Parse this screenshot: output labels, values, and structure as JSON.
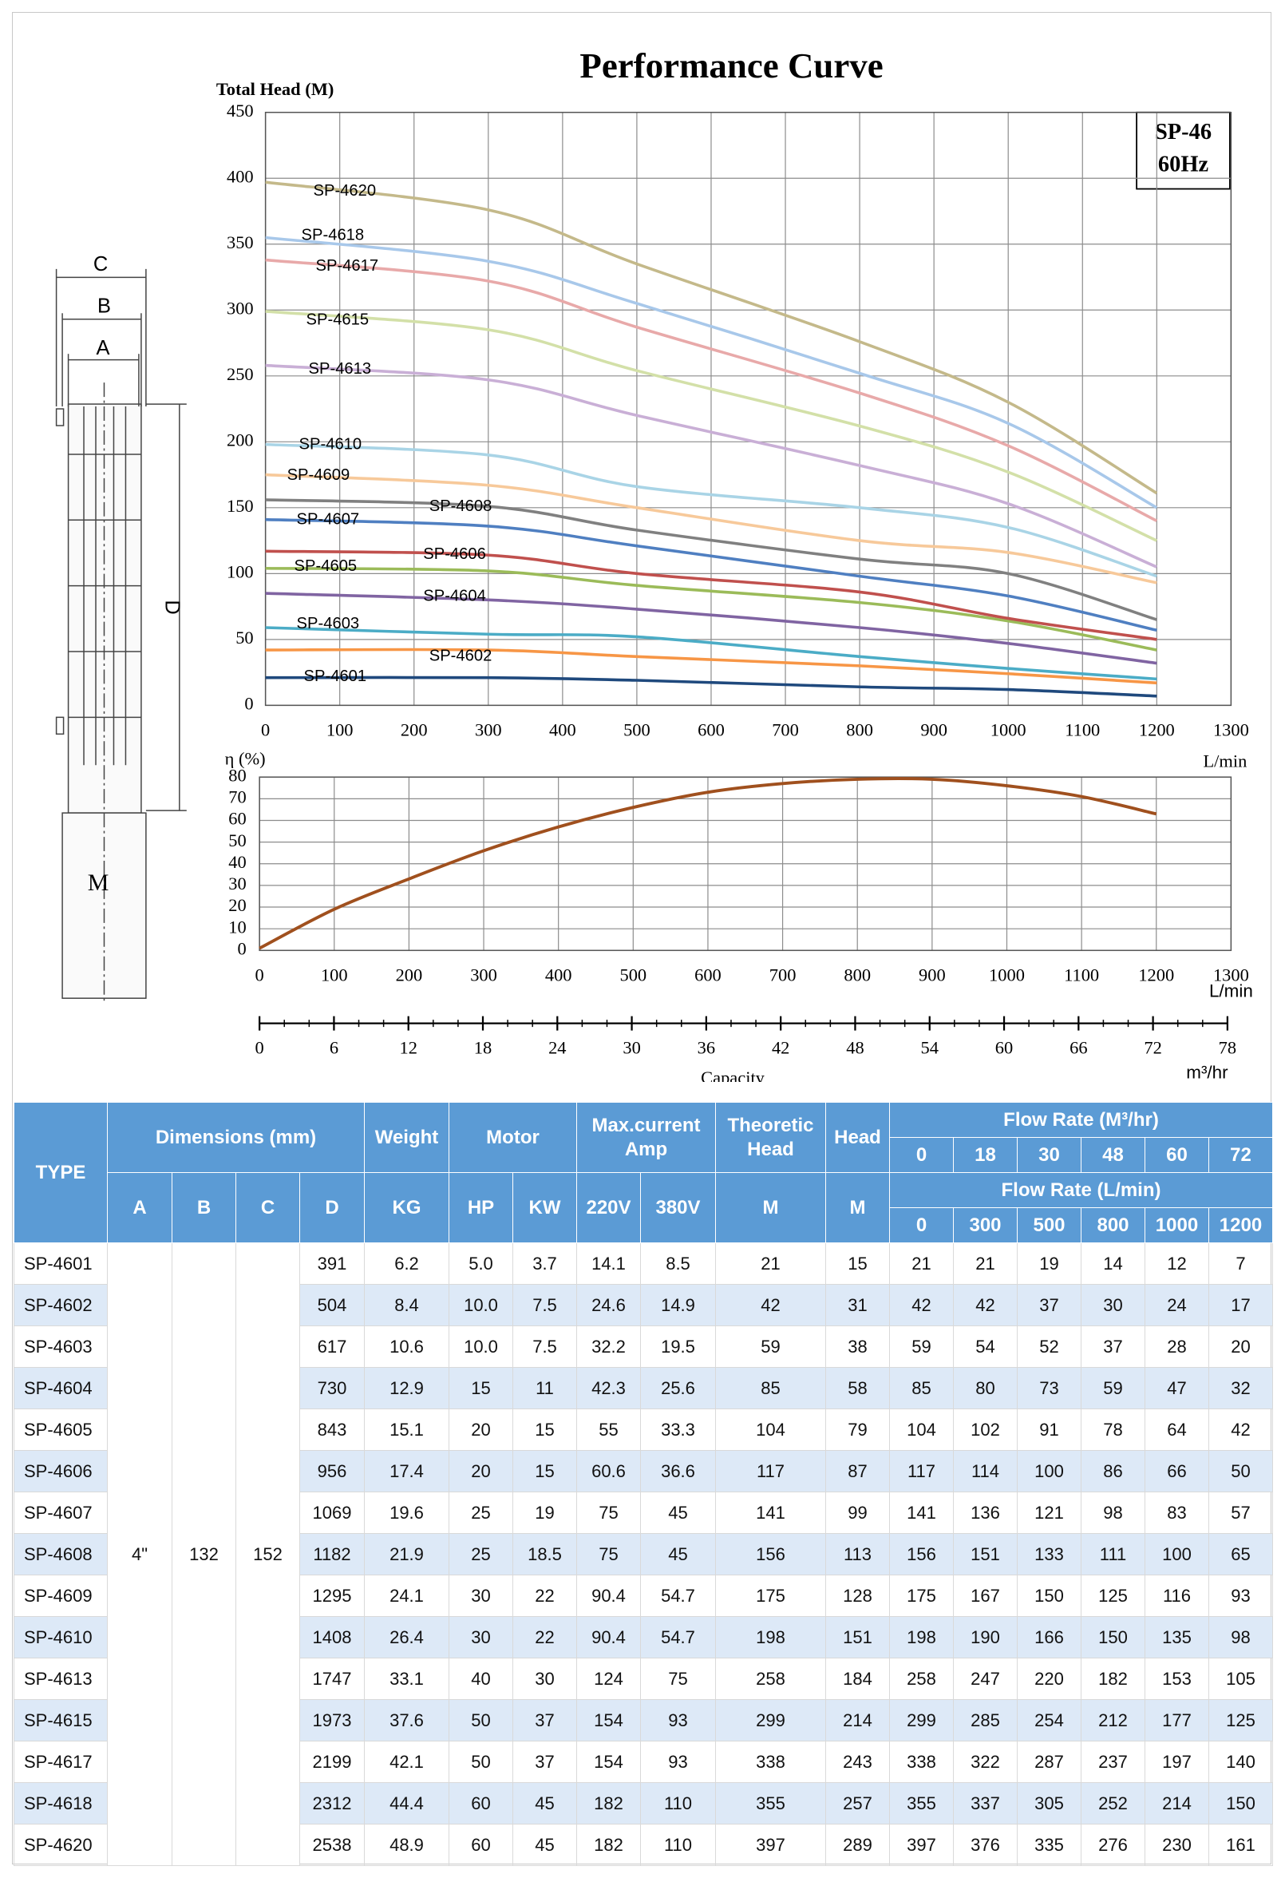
{
  "chart_data": [
    {
      "type": "line",
      "title": "Performance Curve",
      "y_label": "Total Head (M)",
      "x_label": "L/min",
      "model": "SP-46",
      "frequency": "60Hz",
      "x": [
        0,
        300,
        500,
        800,
        1000,
        1200
      ],
      "xlim": [
        0,
        1300
      ],
      "xticks": [
        0,
        100,
        200,
        300,
        400,
        500,
        600,
        700,
        800,
        900,
        1000,
        1100,
        1200,
        1300
      ],
      "ylim": [
        0,
        450
      ],
      "yticks": [
        0,
        50,
        100,
        150,
        200,
        250,
        300,
        350,
        400,
        450
      ],
      "grid": true,
      "series": [
        {
          "name": "SP-4601",
          "color": "#1f497d",
          "values": [
            21,
            21,
            19,
            14,
            12,
            7
          ]
        },
        {
          "name": "SP-4602",
          "color": "#f79646",
          "values": [
            42,
            42,
            37,
            30,
            24,
            17
          ]
        },
        {
          "name": "SP-4603",
          "color": "#4bacc6",
          "values": [
            59,
            54,
            52,
            37,
            28,
            20
          ]
        },
        {
          "name": "SP-4604",
          "color": "#8064a2",
          "values": [
            85,
            80,
            73,
            59,
            47,
            32
          ]
        },
        {
          "name": "SP-4605",
          "color": "#9bbb59",
          "values": [
            104,
            102,
            91,
            78,
            64,
            42
          ]
        },
        {
          "name": "SP-4606",
          "color": "#c0504d",
          "values": [
            117,
            114,
            100,
            86,
            66,
            50
          ]
        },
        {
          "name": "SP-4607",
          "color": "#4f7fc1",
          "values": [
            141,
            136,
            121,
            98,
            83,
            57
          ]
        },
        {
          "name": "SP-4608",
          "color": "#808080",
          "values": [
            156,
            151,
            133,
            111,
            100,
            65
          ]
        },
        {
          "name": "SP-4609",
          "color": "#f7c99a",
          "values": [
            175,
            167,
            150,
            125,
            116,
            93
          ]
        },
        {
          "name": "SP-4610",
          "color": "#a9d4e6",
          "values": [
            198,
            190,
            166,
            150,
            135,
            98
          ]
        },
        {
          "name": "SP-4613",
          "color": "#c9afd6",
          "values": [
            258,
            247,
            220,
            182,
            153,
            105
          ]
        },
        {
          "name": "SP-4615",
          "color": "#d3e0a8",
          "values": [
            299,
            285,
            254,
            212,
            177,
            125
          ]
        },
        {
          "name": "SP-4617",
          "color": "#e8a9a9",
          "values": [
            338,
            322,
            287,
            237,
            197,
            140
          ]
        },
        {
          "name": "SP-4618",
          "color": "#a8c8ea",
          "values": [
            355,
            337,
            305,
            252,
            214,
            150
          ]
        },
        {
          "name": "SP-4620",
          "color": "#c4b98a",
          "values": [
            397,
            376,
            335,
            276,
            230,
            161
          ]
        }
      ]
    },
    {
      "type": "line",
      "y_label": "η (%)",
      "x_label": "L/min",
      "x": [
        0,
        100,
        200,
        300,
        400,
        500,
        600,
        700,
        800,
        900,
        1000,
        1100,
        1200
      ],
      "values": [
        1,
        19,
        33,
        46,
        57,
        66,
        73,
        77,
        79,
        79,
        76,
        71,
        63
      ],
      "color": "#a0501e",
      "xlim": [
        0,
        1300
      ],
      "xticks": [
        0,
        100,
        200,
        300,
        400,
        500,
        600,
        700,
        800,
        900,
        1000,
        1100,
        1200,
        1300
      ],
      "ylim": [
        0,
        80
      ],
      "yticks": [
        0,
        10,
        20,
        30,
        40,
        50,
        60,
        70,
        80
      ],
      "grid": true
    }
  ],
  "capacity_axis": {
    "label": "Capacity",
    "unit": "m³/hr",
    "xlim": [
      0,
      78
    ],
    "xticks": [
      0,
      6,
      12,
      18,
      24,
      30,
      36,
      42,
      48,
      54,
      60,
      66,
      72,
      78
    ]
  },
  "dimension_labels": [
    "C",
    "B",
    "A",
    "D",
    "M"
  ],
  "table": {
    "header": {
      "type": "TYPE",
      "dimensions": "Dimensions (mm)",
      "weight": "Weight",
      "motor": "Motor",
      "current": "Max.current Amp",
      "theoretic": "Theoretic Head",
      "head": "Head",
      "flow_m3": "Flow Rate   (M³/hr)",
      "flow_m3_values": [
        0,
        18,
        30,
        48,
        60,
        72
      ],
      "units": [
        "A",
        "B",
        "C",
        "D",
        "KG",
        "HP",
        "KW",
        "220V",
        "380V",
        "M",
        "M"
      ],
      "flow_lmin": "Flow Rate   (L/min)",
      "flow_lmin_values": [
        0,
        300,
        500,
        800,
        1000,
        1200
      ]
    },
    "merged": [
      "4\"",
      "132",
      "152"
    ],
    "rows": [
      [
        "SP-4601",
        "391",
        "6.2",
        "5.0",
        "3.7",
        "14.1",
        "8.5",
        "21",
        "15",
        "21",
        "21",
        "19",
        "14",
        "12",
        "7"
      ],
      [
        "SP-4602",
        "504",
        "8.4",
        "10.0",
        "7.5",
        "24.6",
        "14.9",
        "42",
        "31",
        "42",
        "42",
        "37",
        "30",
        "24",
        "17"
      ],
      [
        "SP-4603",
        "617",
        "10.6",
        "10.0",
        "7.5",
        "32.2",
        "19.5",
        "59",
        "38",
        "59",
        "54",
        "52",
        "37",
        "28",
        "20"
      ],
      [
        "SP-4604",
        "730",
        "12.9",
        "15",
        "11",
        "42.3",
        "25.6",
        "85",
        "58",
        "85",
        "80",
        "73",
        "59",
        "47",
        "32"
      ],
      [
        "SP-4605",
        "843",
        "15.1",
        "20",
        "15",
        "55",
        "33.3",
        "104",
        "79",
        "104",
        "102",
        "91",
        "78",
        "64",
        "42"
      ],
      [
        "SP-4606",
        "956",
        "17.4",
        "20",
        "15",
        "60.6",
        "36.6",
        "117",
        "87",
        "117",
        "114",
        "100",
        "86",
        "66",
        "50"
      ],
      [
        "SP-4607",
        "1069",
        "19.6",
        "25",
        "19",
        "75",
        "45",
        "141",
        "99",
        "141",
        "136",
        "121",
        "98",
        "83",
        "57"
      ],
      [
        "SP-4608",
        "1182",
        "21.9",
        "25",
        "18.5",
        "75",
        "45",
        "156",
        "113",
        "156",
        "151",
        "133",
        "111",
        "100",
        "65"
      ],
      [
        "SP-4609",
        "1295",
        "24.1",
        "30",
        "22",
        "90.4",
        "54.7",
        "175",
        "128",
        "175",
        "167",
        "150",
        "125",
        "116",
        "93"
      ],
      [
        "SP-4610",
        "1408",
        "26.4",
        "30",
        "22",
        "90.4",
        "54.7",
        "198",
        "151",
        "198",
        "190",
        "166",
        "150",
        "135",
        "98"
      ],
      [
        "SP-4613",
        "1747",
        "33.1",
        "40",
        "30",
        "124",
        "75",
        "258",
        "184",
        "258",
        "247",
        "220",
        "182",
        "153",
        "105"
      ],
      [
        "SP-4615",
        "1973",
        "37.6",
        "50",
        "37",
        "154",
        "93",
        "299",
        "214",
        "299",
        "285",
        "254",
        "212",
        "177",
        "125"
      ],
      [
        "SP-4617",
        "2199",
        "42.1",
        "50",
        "37",
        "154",
        "93",
        "338",
        "243",
        "338",
        "322",
        "287",
        "237",
        "197",
        "140"
      ],
      [
        "SP-4618",
        "2312",
        "44.4",
        "60",
        "45",
        "182",
        "110",
        "355",
        "257",
        "355",
        "337",
        "305",
        "252",
        "214",
        "150"
      ],
      [
        "SP-4620",
        "2538",
        "48.9",
        "60",
        "45",
        "182",
        "110",
        "397",
        "289",
        "397",
        "376",
        "335",
        "276",
        "230",
        "161"
      ]
    ]
  }
}
